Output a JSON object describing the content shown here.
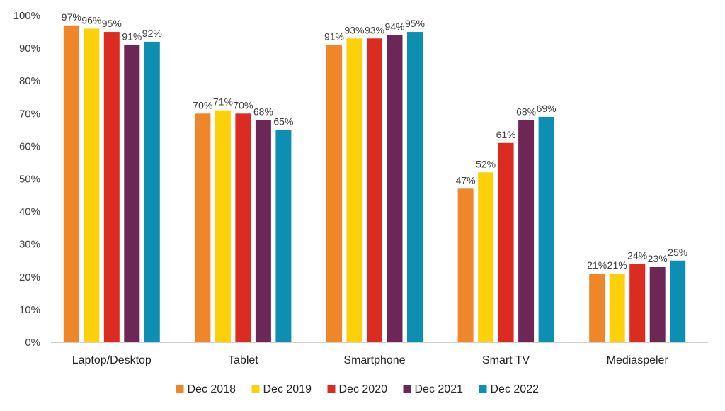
{
  "chart_data": {
    "type": "bar",
    "categories": [
      "Laptop/Desktop",
      "Tablet",
      "Smartphone",
      "Smart TV",
      "Mediaspeler"
    ],
    "series": [
      {
        "name": "Dec 2018",
        "color": "#F0862A",
        "values": [
          97,
          70,
          91,
          47,
          21
        ]
      },
      {
        "name": "Dec 2019",
        "color": "#FDD109",
        "values": [
          96,
          71,
          93,
          52,
          21
        ]
      },
      {
        "name": "Dec 2020",
        "color": "#DC2C21",
        "values": [
          95,
          70,
          93,
          61,
          24
        ]
      },
      {
        "name": "Dec 2021",
        "color": "#6D2756",
        "values": [
          91,
          68,
          94,
          68,
          23
        ]
      },
      {
        "name": "Dec 2022",
        "color": "#0C8FB3",
        "values": [
          92,
          65,
          95,
          69,
          25
        ]
      }
    ],
    "ylim": [
      0,
      100
    ],
    "yticks": [
      0,
      10,
      20,
      30,
      40,
      50,
      60,
      70,
      80,
      90,
      100
    ],
    "value_suffix": "%",
    "grid": false,
    "legend": "bottom"
  }
}
